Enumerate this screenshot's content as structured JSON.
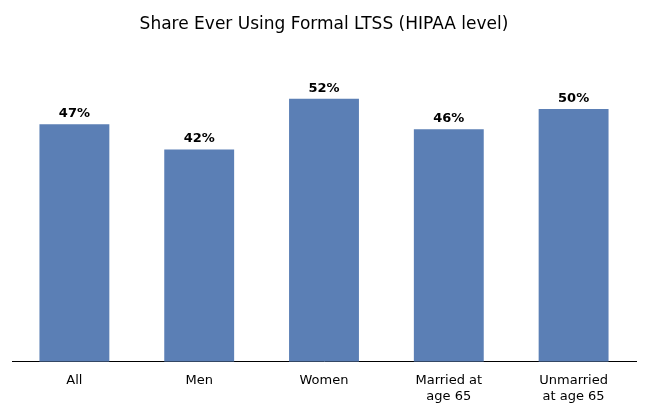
{
  "chart_data": {
    "type": "bar",
    "title": "Share Ever Using Formal LTSS (HIPAA level)",
    "categories": [
      "All",
      "Men",
      "Women",
      "Married at\nage 65",
      "Unmarried\nat age 65"
    ],
    "values": [
      47,
      42,
      52,
      46,
      50
    ],
    "value_labels": [
      "47%",
      "42%",
      "52%",
      "46%",
      "50%"
    ],
    "data_labels": true,
    "color": "#5B7FB5",
    "ylim": [
      0,
      60
    ],
    "grid": false,
    "tick_labels": "x"
  }
}
